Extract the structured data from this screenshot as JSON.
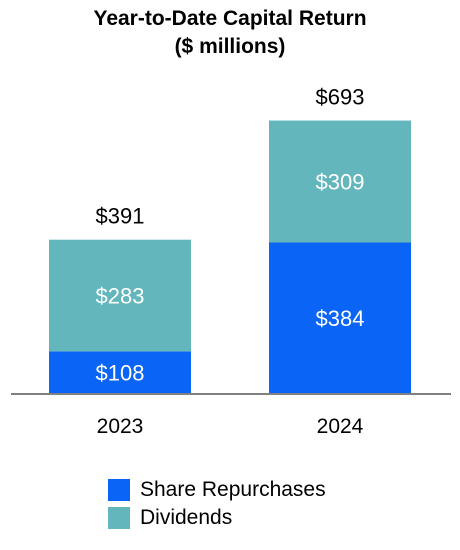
{
  "chart_data": {
    "type": "bar",
    "stacked": true,
    "title": "Year-to-Date Capital Return",
    "subtitle": "($ millions)",
    "categories": [
      "2023",
      "2024"
    ],
    "series": [
      {
        "name": "Share Repurchases",
        "values": [
          108,
          384
        ],
        "labels": [
          "$108",
          "$384"
        ],
        "color": "#0a64f5"
      },
      {
        "name": "Dividends",
        "values": [
          283,
          309
        ],
        "labels": [
          "$283",
          "$309"
        ],
        "color": "#62b6bc"
      }
    ],
    "totals": [
      391,
      693
    ],
    "total_labels": [
      "$391",
      "$693"
    ],
    "ylim": [
      0,
      700
    ],
    "grid": false,
    "legend": "bottom-left"
  }
}
